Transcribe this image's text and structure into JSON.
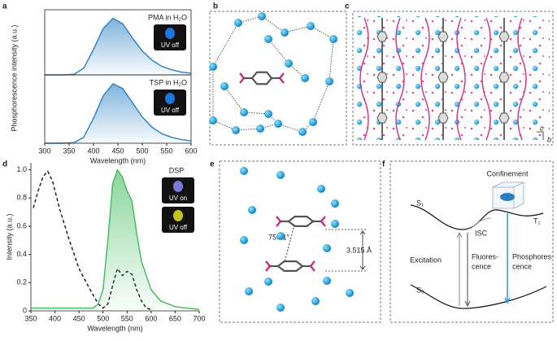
{
  "chart_data": [
    {
      "type": "line",
      "xlim": [
        300,
        600
      ],
      "ylim": [
        0,
        1.15
      ],
      "ylabel": "Phosphorescence intensity (a.u.)",
      "inset_labels": [
        "UV off"
      ],
      "inset_colors": [
        "#1e88ff"
      ],
      "series": [
        {
          "name": "PMA in H₂O",
          "color": "#2a7fc4",
          "x": [
            300,
            320,
            340,
            360,
            380,
            400,
            420,
            440,
            460,
            480,
            500,
            520,
            540,
            560,
            580,
            600
          ],
          "values": [
            0,
            0,
            0,
            0.01,
            0.12,
            0.45,
            0.82,
            1.0,
            0.9,
            0.65,
            0.42,
            0.26,
            0.15,
            0.09,
            0.05,
            0.03
          ]
        }
      ]
    },
    {
      "type": "line",
      "xlim": [
        300,
        600
      ],
      "ylim": [
        0,
        1.15
      ],
      "xticks": [
        300,
        350,
        400,
        450,
        500,
        550,
        600
      ],
      "xlabel": "Wavelength (nm)",
      "inset_labels": [
        "UV off"
      ],
      "inset_colors": [
        "#1e88ff"
      ],
      "series": [
        {
          "name": "TSP in H₂O",
          "color": "#2a7fc4",
          "x": [
            300,
            320,
            340,
            360,
            380,
            400,
            420,
            440,
            460,
            480,
            500,
            520,
            540,
            560,
            580,
            600
          ],
          "values": [
            0,
            0,
            0,
            0.01,
            0.1,
            0.42,
            0.8,
            1.0,
            0.92,
            0.68,
            0.44,
            0.27,
            0.16,
            0.1,
            0.06,
            0.04
          ]
        }
      ]
    },
    {
      "type": "line",
      "xlim": [
        350,
        700
      ],
      "ylim": [
        0,
        1.05
      ],
      "xticks": [
        350,
        400,
        450,
        500,
        550,
        600,
        650,
        700
      ],
      "yticks": [
        0,
        0.2,
        0.4,
        0.6,
        0.8,
        {
          "value": 1,
          "label": "1.0"
        }
      ],
      "xlabel": "Wavelength (nm)",
      "ylabel": "Intensity (a.u.)",
      "annotation": "DSP",
      "inset_labels": [
        "UV on",
        "UV off"
      ],
      "inset_colors": [
        "#8a8cff",
        "#e8e020"
      ],
      "series": [
        {
          "color": "#111111",
          "dash": true,
          "x": [
            355,
            365,
            375,
            385,
            395,
            410,
            430,
            450,
            470,
            490,
            500,
            510,
            520,
            530,
            540,
            550,
            560,
            570,
            580,
            590,
            600
          ],
          "values": [
            0.73,
            0.85,
            0.95,
            0.99,
            0.92,
            0.72,
            0.5,
            0.3,
            0.17,
            0.05,
            0.02,
            0.05,
            0.18,
            0.3,
            0.25,
            0.28,
            0.26,
            0.15,
            0.07,
            0.02,
            0.01
          ]
        },
        {
          "color": "#3fba5a",
          "x": [
            350,
            400,
            450,
            480,
            490,
            500,
            510,
            520,
            530,
            540,
            550,
            560,
            570,
            580,
            600,
            620,
            650,
            700
          ],
          "values": [
            0.02,
            0.02,
            0.02,
            0.02,
            0.05,
            0.15,
            0.5,
            0.9,
            1.0,
            0.95,
            0.85,
            0.78,
            0.55,
            0.35,
            0.15,
            0.07,
            0.03,
            0.01
          ]
        }
      ]
    }
  ],
  "panel_labels": [
    "a",
    "b",
    "c",
    "d",
    "e",
    "f"
  ],
  "panel_c": {
    "axis_labels": [
      "c",
      "b"
    ]
  },
  "panel_e": {
    "distance": "3.515 Å",
    "angle": "75.21°"
  },
  "panel_f": {
    "s1": "S₁",
    "t1": "T₁",
    "s0": "S₀",
    "confinement": "Confinement",
    "isc": "ISC",
    "excitation": "Excitation",
    "fluorescence": [
      "Fluores-",
      "cence"
    ],
    "phosphorescence": [
      "Phosphores-",
      "cence"
    ]
  }
}
